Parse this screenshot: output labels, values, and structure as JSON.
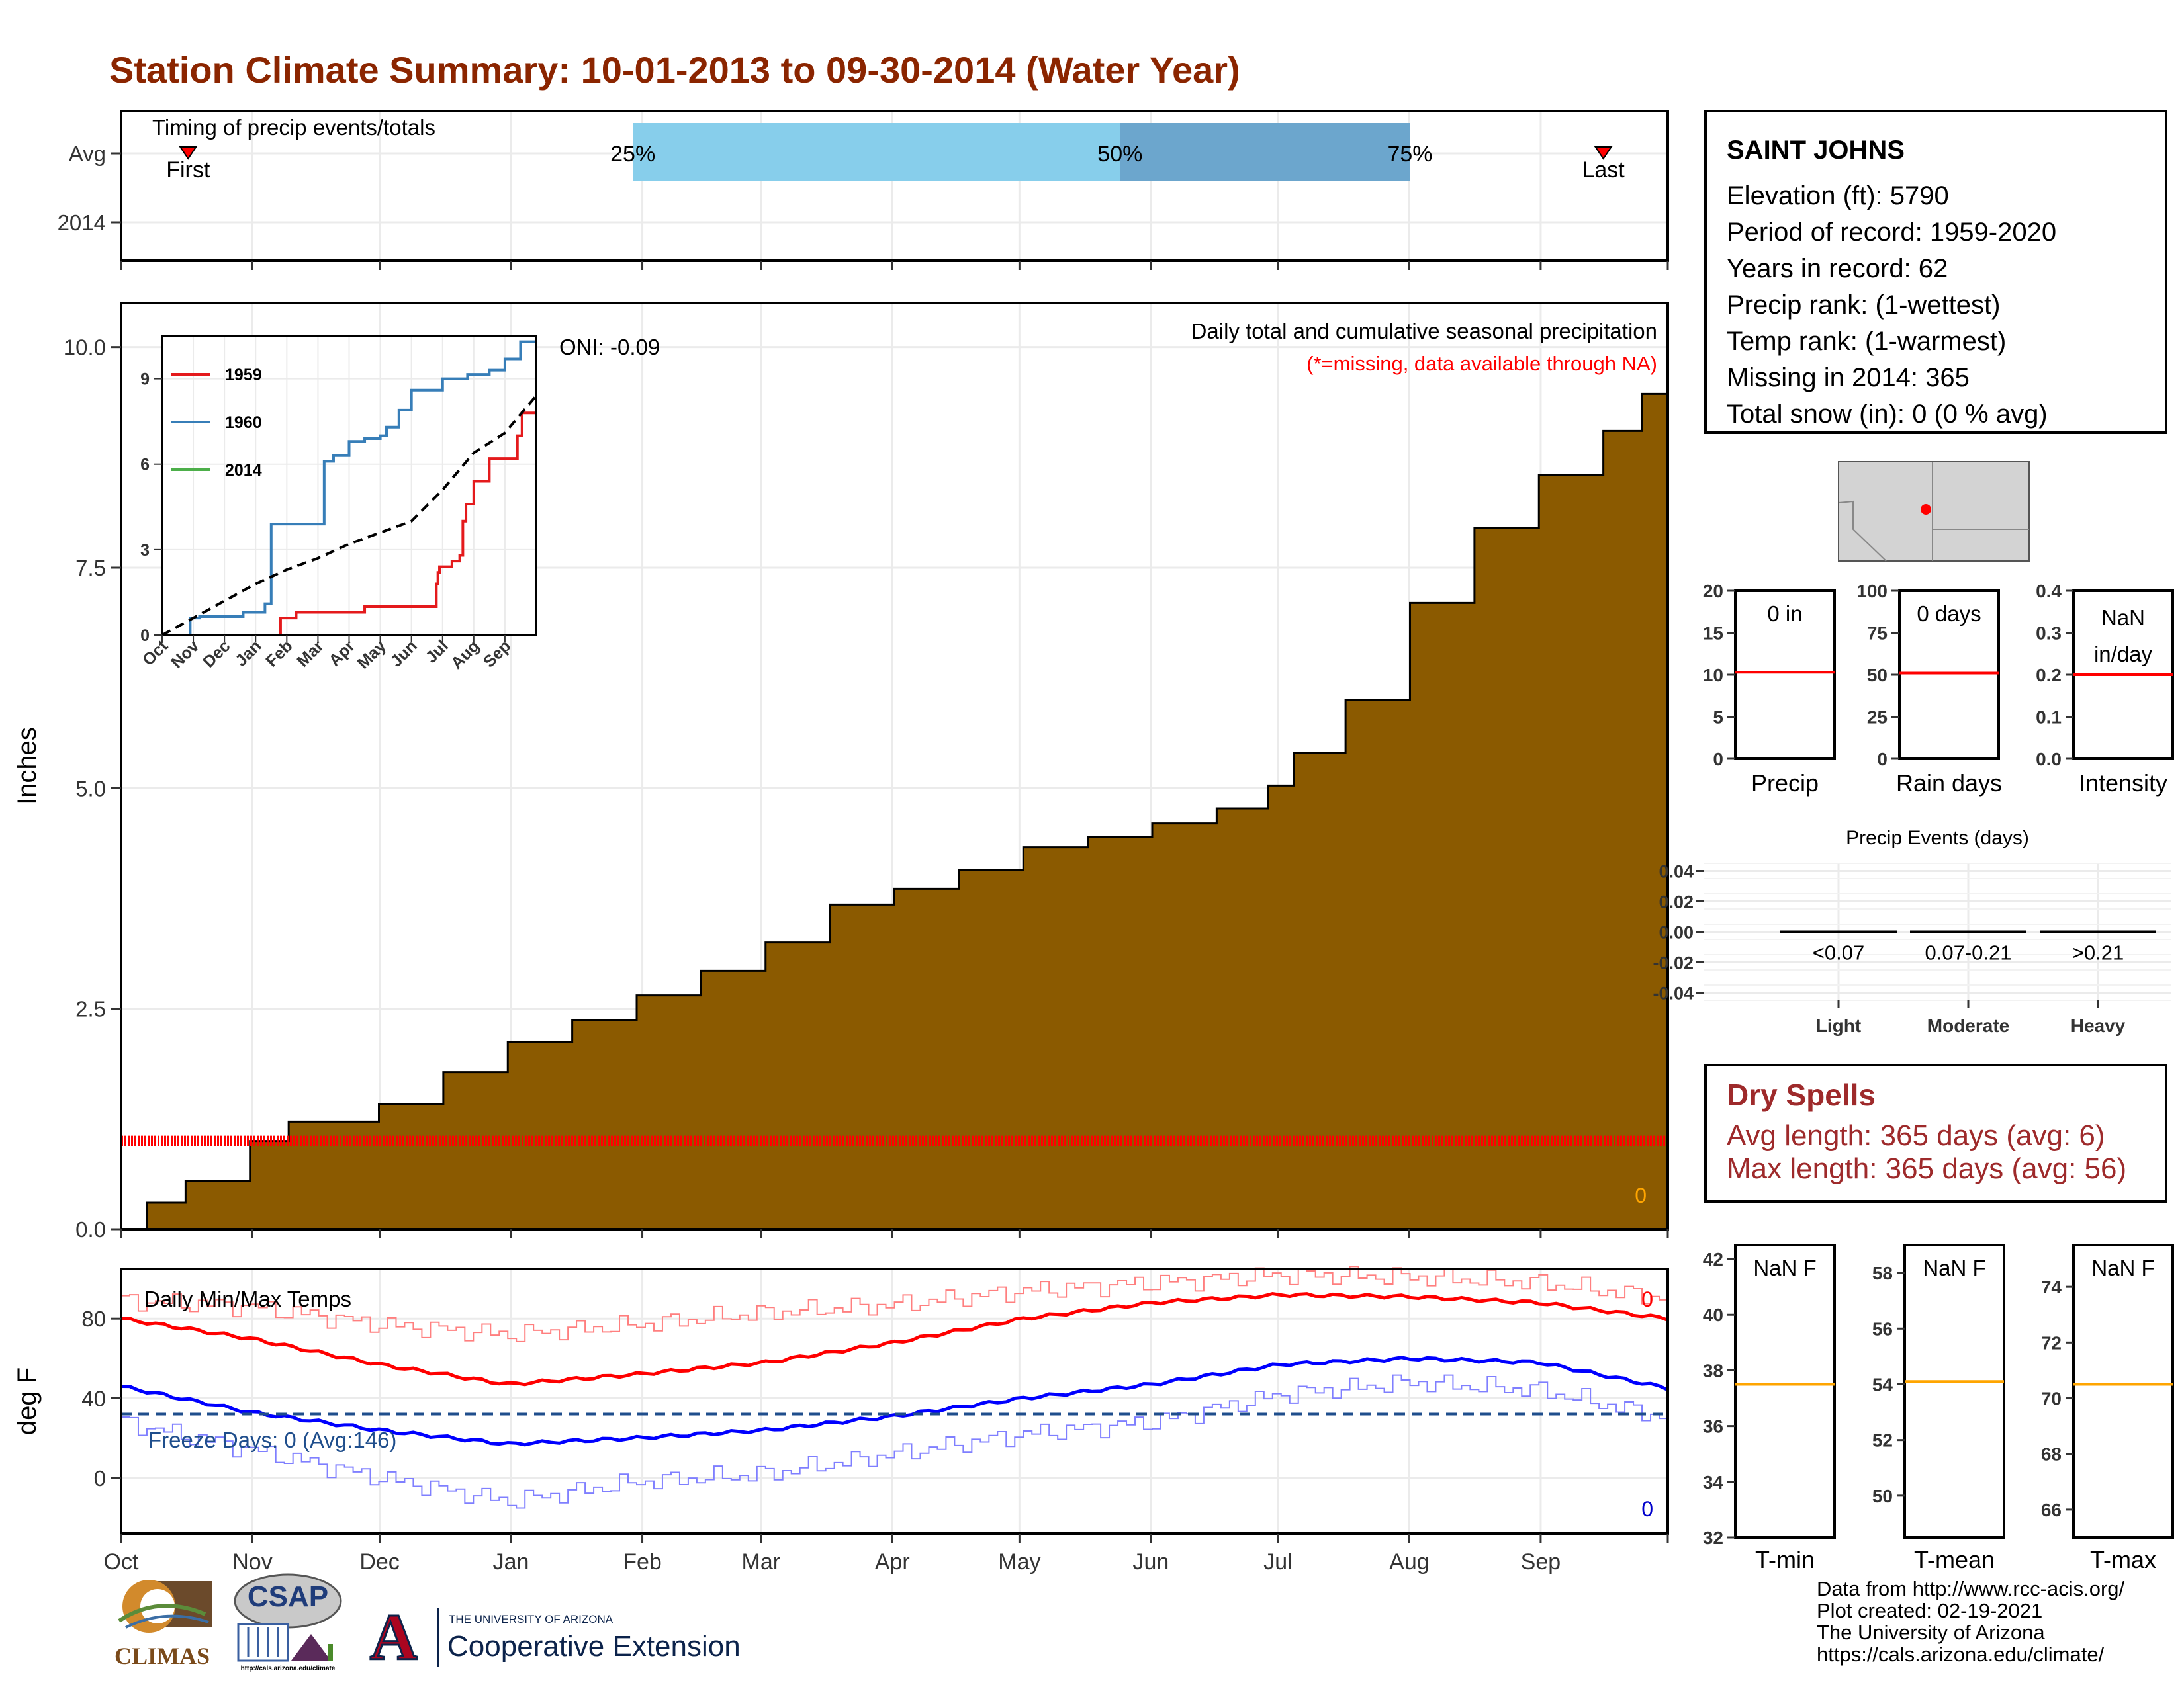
{
  "page_title": "Station Climate Summary: 10-01-2013 to 09-30-2014 (Water Year)",
  "colors": {
    "title": "#8b2500",
    "cumulative_fill": "#8b5a00",
    "precip_red": "#ff0000",
    "tmax": "#ff0000",
    "tmin": "#0000ff",
    "freeze_line": "#1f4e8c",
    "avg_line": "#ffa500",
    "quartile_light": "#87ceeb",
    "quartile_dark": "#6ca6cd",
    "dry_text": "#9e2a2b"
  },
  "station_info": {
    "name": "SAINT JOHNS",
    "lines": [
      "Elevation (ft): 5790",
      "Period of record: 1959-2020",
      "Years in record: 62",
      "Precip rank:  (1-wettest)",
      "Temp rank:  (1-warmest)",
      "Missing in 2014: 365",
      "Total snow (in): 0 (0 % avg)"
    ]
  },
  "dry_spells": {
    "title": "Dry Spells",
    "avg": "Avg length: 365 days (avg: 6)",
    "max": "Max length: 365 days (avg: 56)"
  },
  "footer": [
    "Data from http://www.rcc-acis.org/",
    "Plot created: 02-19-2021",
    "The University of Arizona",
    "https://cals.arizona.edu/climate/"
  ],
  "logos": {
    "climas": "CLIMAS",
    "csap": "CSAP",
    "csap_url": "http://cals.arizona.edu/climate",
    "ua_small": "THE UNIVERSITY OF ARIZONA",
    "ua_big": "Cooperative Extension",
    "ua_letter": "A"
  },
  "chart_data": [
    {
      "id": "timing",
      "type": "bar",
      "title": "Timing of precip events/totals",
      "rows": [
        "Avg",
        "2014"
      ],
      "quartile_labels": [
        "25%",
        "50%",
        "75%"
      ],
      "quartiles_month_pos": [
        3.97,
        7.75,
        10.0
      ],
      "first_label": "First",
      "first_pos": 0.52,
      "last_label": "Last",
      "last_pos": 11.5
    },
    {
      "id": "cumulative",
      "type": "area",
      "title": "Daily total and cumulative seasonal precipitation",
      "subtitle": "(*=missing, data available through NA)",
      "oni": "ONI: -0.09",
      "ylabel": "Inches",
      "ylim": [
        0,
        10.5
      ],
      "yticks": [
        "0.0",
        "2.5",
        "5.0",
        "7.5",
        "10.0"
      ],
      "xlim": [
        0,
        11.8
      ],
      "month_labels": [
        "Oct",
        "Nov",
        "Dec",
        "Jan",
        "Feb",
        "Mar",
        "Apr",
        "May",
        "Jun",
        "Jul",
        "Aug",
        "Sep"
      ],
      "corner_value": "0",
      "missing_marker_y": 1.0,
      "series": [
        {
          "month_pos": [
            0,
            0.2,
            0.5,
            1.0,
            1.3,
            2.0,
            2.5,
            3.0,
            3.5,
            4.0,
            4.5,
            5.0,
            5.5,
            6.0,
            6.5,
            7.0,
            7.5,
            8.0,
            8.5,
            8.9,
            9.1,
            9.5,
            10.0,
            10.5,
            11.0,
            11.5,
            11.8
          ],
          "values": [
            0,
            0.3,
            0.55,
            1.0,
            1.22,
            1.42,
            1.78,
            2.12,
            2.37,
            2.65,
            2.93,
            3.25,
            3.68,
            3.86,
            4.07,
            4.33,
            4.45,
            4.6,
            4.77,
            5.03,
            5.4,
            6.0,
            7.1,
            7.95,
            8.55,
            9.05,
            9.47
          ]
        }
      ]
    },
    {
      "id": "inset",
      "type": "line",
      "ylim": [
        0,
        10.5
      ],
      "yticks": [
        "0",
        "3",
        "6",
        "9"
      ],
      "month_labels": [
        "Oct",
        "Nov",
        "Dec",
        "Jan",
        "Feb",
        "Mar",
        "Apr",
        "May",
        "Jun",
        "Jul",
        "Aug",
        "Sep"
      ],
      "series": [
        {
          "name": "1959",
          "values_x": [
            0,
            3,
            3.8,
            4.1,
            4.3,
            6.2,
            6.5,
            7.4,
            8.8,
            8.85,
            8.9,
            9.1,
            9.3,
            9.45,
            9.55,
            9.65,
            9.75,
            10,
            10.5,
            11.4,
            11.55,
            12
          ],
          "values_y": [
            0,
            0,
            0.6,
            0.6,
            0.8,
            0.8,
            1.0,
            1.0,
            1.8,
            2.2,
            2.4,
            2.4,
            2.6,
            2.6,
            2.8,
            4.0,
            4.6,
            5.4,
            6.2,
            7.0,
            7.8,
            8.6
          ]
        },
        {
          "name": "1960",
          "values_x": [
            0,
            0.9,
            1.2,
            2.3,
            2.6,
            3.1,
            3.3,
            3.5,
            4.0,
            5.2,
            5.5,
            6.0,
            6.5,
            7.0,
            7.2,
            7.6,
            8.0,
            9.0,
            9.8,
            10.5,
            11.0,
            11.5,
            12
          ],
          "values_y": [
            0,
            0.6,
            0.65,
            0.65,
            0.8,
            0.8,
            1.1,
            3.9,
            3.9,
            6.1,
            6.3,
            6.8,
            6.9,
            7.0,
            7.3,
            7.9,
            8.6,
            9.0,
            9.15,
            9.3,
            9.7,
            10.3,
            10.4
          ]
        },
        {
          "name": "2014",
          "values_x": [],
          "values_y": []
        },
        {
          "name": "",
          "values_x": [
            0,
            1,
            2,
            3,
            4,
            5,
            6,
            7,
            8,
            9,
            10,
            11,
            12
          ],
          "values_y": [
            0,
            0.6,
            1.2,
            1.8,
            2.3,
            2.7,
            3.2,
            3.6,
            4.0,
            5.1,
            6.4,
            7.1,
            8.4
          ]
        }
      ]
    },
    {
      "id": "temps",
      "type": "line",
      "title": "Daily Min/Max Temps",
      "ylabel": "deg F",
      "ylim": [
        -28,
        105
      ],
      "yticks": [
        "0",
        "40",
        "80"
      ],
      "freeze_label": "Freeze Days: 0 (Avg:146)",
      "freeze_y": 32,
      "max_count": "0",
      "min_count": "0",
      "month_labels": [
        "Oct",
        "Nov",
        "Dec",
        "Jan",
        "Feb",
        "Mar",
        "Apr",
        "May",
        "Jun",
        "Jul",
        "Aug",
        "Sep"
      ],
      "series": [
        {
          "name": "avg max",
          "month_pos": [
            0,
            1,
            2,
            3,
            4,
            5,
            6,
            7,
            8,
            9,
            10,
            11,
            12
          ],
          "values": [
            80,
            70,
            57,
            47,
            52,
            58,
            68,
            80,
            88,
            92,
            91,
            88,
            80
          ]
        },
        {
          "name": "avg min",
          "month_pos": [
            0,
            1,
            2,
            3,
            4,
            5,
            6,
            7,
            8,
            9,
            10,
            11,
            12
          ],
          "values": [
            46,
            33,
            24,
            17,
            20,
            24,
            31,
            40,
            47,
            57,
            60,
            58,
            45
          ]
        },
        {
          "name": "record max",
          "month_pos": [
            0,
            1,
            2,
            3,
            4,
            5,
            6,
            7,
            8,
            9,
            10,
            11,
            12
          ],
          "values": [
            89,
            86,
            77,
            72,
            77,
            83,
            87,
            94,
            98,
            102,
            101,
            98,
            90
          ]
        },
        {
          "name": "record min",
          "month_pos": [
            0,
            1,
            2,
            3,
            4,
            5,
            6,
            7,
            8,
            9,
            10,
            11,
            12
          ],
          "values": [
            28,
            14,
            0,
            -12,
            -2,
            2,
            12,
            22,
            28,
            42,
            48,
            44,
            30
          ]
        }
      ]
    },
    {
      "id": "precip_gauge",
      "type": "bar",
      "label": "0 in",
      "xlabel": "Precip",
      "ylim": [
        0,
        20
      ],
      "yticks": [
        "0",
        "5",
        "10",
        "15",
        "20"
      ],
      "avg": 10.3
    },
    {
      "id": "rain_gauge",
      "type": "bar",
      "label": "0 days",
      "xlabel": "Rain days",
      "ylim": [
        0,
        100
      ],
      "yticks": [
        "0",
        "25",
        "50",
        "75",
        "100"
      ],
      "avg": 51
    },
    {
      "id": "int_gauge",
      "type": "bar",
      "label": "NaN in/day",
      "label_lines": [
        "NaN",
        "in/day"
      ],
      "xlabel": "Intensity",
      "ylim": [
        0,
        0.4
      ],
      "yticks": [
        "0.0",
        "0.1",
        "0.2",
        "0.3",
        "0.4"
      ],
      "avg": 0.2
    },
    {
      "id": "events",
      "type": "bar",
      "title": "Precip Events (days)",
      "categories": [
        "Light",
        "Moderate",
        "Heavy"
      ],
      "cat_labels": [
        "<0.07",
        "0.07-0.21",
        ">0.21"
      ],
      "values": [
        0,
        0,
        0
      ],
      "ylim": [
        -0.045,
        0.045
      ],
      "yticks": [
        "-0.04",
        "-0.02",
        "0.00",
        "0.02",
        "0.04"
      ]
    },
    {
      "id": "tmin_gauge",
      "type": "bar",
      "label": "NaN F",
      "xlabel": "T-min",
      "ylim": [
        32,
        42.5
      ],
      "yticks": [
        "32",
        "34",
        "36",
        "38",
        "40",
        "42"
      ],
      "avg": 37.5
    },
    {
      "id": "tmean_gauge",
      "type": "bar",
      "label": "NaN F",
      "xlabel": "T-mean",
      "ylim": [
        48.5,
        59
      ],
      "yticks": [
        "50",
        "52",
        "54",
        "56",
        "58"
      ],
      "avg": 54.1
    },
    {
      "id": "tmax_gauge",
      "type": "bar",
      "label": "NaN F",
      "xlabel": "T-max",
      "ylim": [
        65,
        75.5
      ],
      "yticks": [
        "66",
        "68",
        "70",
        "72",
        "74"
      ],
      "avg": 70.5
    }
  ]
}
